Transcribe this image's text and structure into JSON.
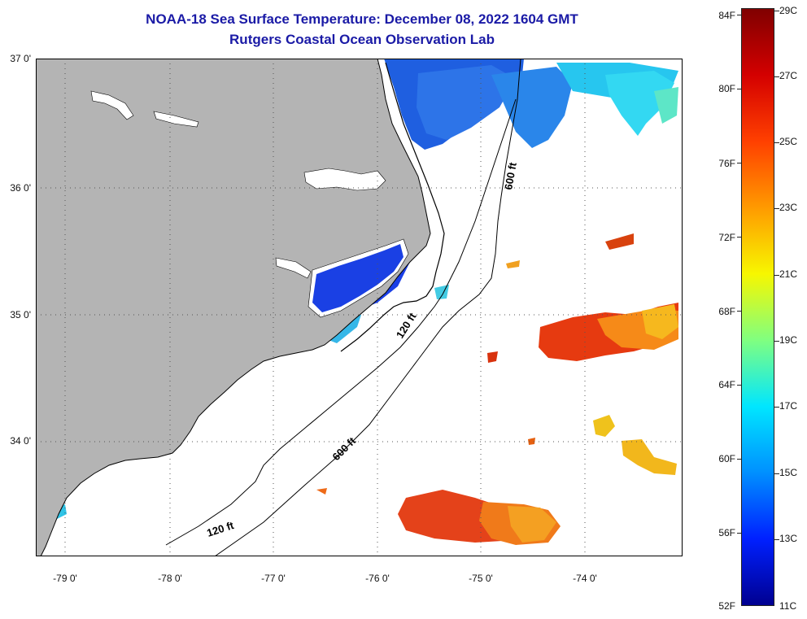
{
  "title": {
    "line1": "NOAA-18 Sea Surface Temperature:  December 08, 2022 1604 GMT",
    "line2": "Rutgers Coastal Ocean Observation Lab"
  },
  "map": {
    "lat_labels": [
      "37 0'",
      "36 0'",
      "35 0'",
      "34 0'"
    ],
    "lon_labels": [
      "-79 0'",
      "-78 0'",
      "-77 0'",
      "-76 0'",
      "-75 0'",
      "-74 0'"
    ],
    "contours": {
      "shelf_label_a": "120 ft",
      "shelf_label_b": "120 ft",
      "slope_label_a": "600 ft",
      "slope_label_b": "600 ft"
    },
    "colors": {
      "land": "#b4b4b4",
      "ocean_nodata": "#ffffff",
      "grid": "#555555"
    }
  },
  "colorbar": {
    "fahrenheit": [
      "84F",
      "80F",
      "76F",
      "72F",
      "68F",
      "64F",
      "60F",
      "56F",
      "52F"
    ],
    "celsius": [
      "29C",
      "27C",
      "25C",
      "23C",
      "21C",
      "19C",
      "17C",
      "15C",
      "13C",
      "11C"
    ],
    "stops": [
      "#800000",
      "#d40000",
      "#ff4000",
      "#ff9a00",
      "#f7f700",
      "#80ff80",
      "#00e6ff",
      "#0090ff",
      "#0020ff",
      "#000090"
    ]
  }
}
